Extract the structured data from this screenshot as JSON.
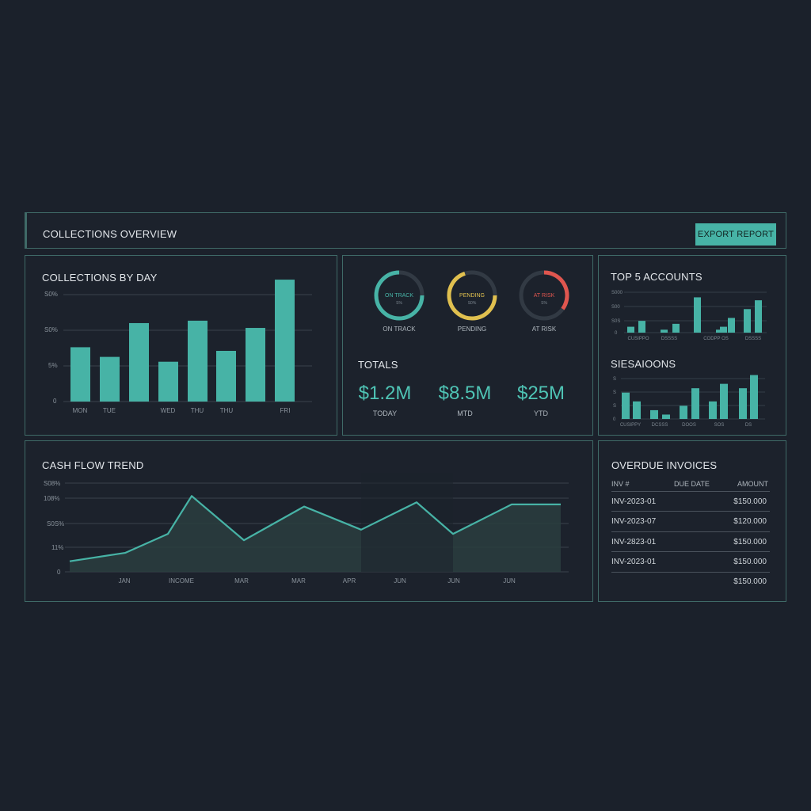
{
  "header": {
    "title": "COLLECTIONS OVERVIEW",
    "export_label": "EXPORT REPORT"
  },
  "colors": {
    "accent": "#47b3a6",
    "pending": "#e0c04f",
    "at_risk": "#e0564f",
    "panel_border": "#3f6a67"
  },
  "collections_by_day": {
    "title": "COLLECTIONS BY DAY",
    "y_ticks": [
      "S0%",
      "S0%",
      "5%",
      "0"
    ],
    "x_labels": [
      "MON",
      "TUE",
      "WED",
      "THU",
      "THU",
      "FRI"
    ]
  },
  "status": [
    {
      "inner": "ON TRACK",
      "sub": "S%",
      "label": "ON TRACK",
      "color": "#47b3a6",
      "fraction": 0.75
    },
    {
      "inner": "PENDING",
      "sub": "S0%",
      "label": "PENDING",
      "color": "#e0c04f",
      "fraction": 0.7
    },
    {
      "inner": "AT RISK",
      "sub": "S%",
      "label": "AT RISK",
      "color": "#e0564f",
      "fraction": 0.35
    }
  ],
  "totals": {
    "title": "TOTALS",
    "items": [
      {
        "value": "$1.2M",
        "label": "TODAY"
      },
      {
        "value": "$8.5M",
        "label": "MTD"
      },
      {
        "value": "$25M",
        "label": "YTD"
      }
    ]
  },
  "top_accounts": {
    "title": "TOP 5 ACCOUNTS",
    "y_ticks": [
      "S000",
      "S00",
      "S0S",
      "0"
    ],
    "x_labels": [
      "CUSIPPO",
      "DSSSS",
      "CODPP OS",
      "DSSSS"
    ]
  },
  "segments": {
    "title": "SIESAIOONS",
    "y_ticks": [
      "S",
      "S",
      "S",
      "0"
    ],
    "x_labels": [
      "CUSIPPY",
      "DCSSS",
      "DOOS",
      "SOS",
      "DS"
    ]
  },
  "cash_flow": {
    "title": "CASH FLOW TREND",
    "y_ticks": [
      "S08%",
      "108%",
      "S0S%",
      "11%",
      "0"
    ],
    "x_labels": [
      "JAN",
      "INCOME",
      "MAR",
      "MAR",
      "APR",
      "JUN",
      "JUN",
      "JUN"
    ]
  },
  "overdue": {
    "title": "OVERDUE INVOICES",
    "headers": [
      "INV #",
      "DUE DATE",
      "AMOUNT"
    ],
    "rows": [
      {
        "inv": "INV-2023-01",
        "amount": "$150.000"
      },
      {
        "inv": "INV-2023-07",
        "amount": "$120.000"
      },
      {
        "inv": "INV-2823-01",
        "amount": "$150.000"
      },
      {
        "inv": "INV-2023-01",
        "amount": "$150.000"
      },
      {
        "inv": "",
        "amount": "$150.000"
      }
    ]
  },
  "chart_data": [
    {
      "type": "bar",
      "title": "COLLECTIONS BY DAY",
      "ylabel": "",
      "xlabel": "",
      "values": [
        45,
        37,
        65,
        33,
        67,
        42,
        61,
        101
      ],
      "ylim": [
        0,
        105
      ]
    },
    {
      "type": "bar",
      "title": "TOP 5 ACCOUNTS",
      "values": [
        2,
        4,
        1,
        3,
        12,
        1,
        5,
        2,
        8,
        11
      ],
      "ylim": [
        0,
        14
      ]
    },
    {
      "type": "bar",
      "title": "SIESAIOONS",
      "values": [
        6,
        4,
        2,
        1,
        3,
        7,
        4,
        8,
        7,
        10
      ],
      "ylim": [
        0,
        11
      ]
    },
    {
      "type": "area",
      "title": "CASH FLOW TREND",
      "values": [
        10,
        18,
        36,
        72,
        30,
        62,
        40,
        66,
        36,
        64,
        64
      ],
      "ylim": [
        0,
        88
      ]
    }
  ]
}
